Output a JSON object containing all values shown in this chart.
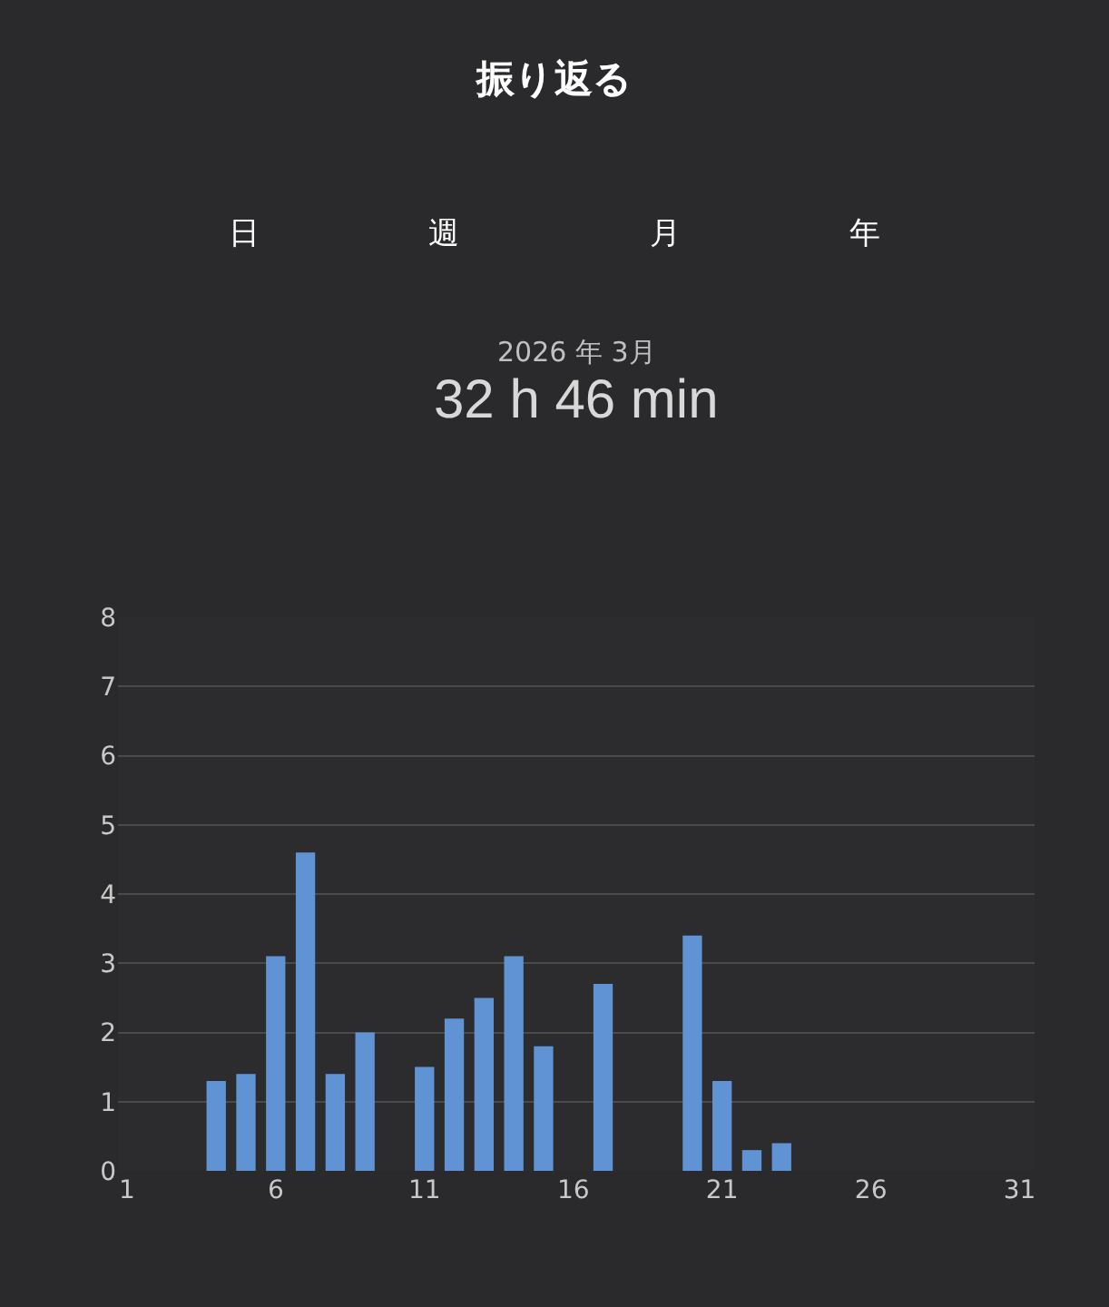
{
  "chart_data": {
    "type": "bar",
    "title": "振り返る",
    "subtitle": "2026 年 3月",
    "annotations": [
      "32 h 46 min",
      "日",
      "週",
      "月",
      "年"
    ],
    "x": [
      1,
      2,
      3,
      4,
      5,
      6,
      7,
      8,
      9,
      10,
      11,
      12,
      13,
      14,
      15,
      16,
      17,
      18,
      19,
      20,
      21,
      22,
      23,
      24,
      25,
      26,
      27,
      28,
      29,
      30,
      31
    ],
    "values": [
      0,
      0,
      0,
      1.3,
      1.4,
      3.1,
      4.6,
      1.4,
      2.0,
      0,
      1.5,
      2.2,
      2.5,
      3.1,
      1.8,
      0,
      2.7,
      0,
      0,
      3.4,
      1.3,
      0.3,
      0.4,
      0,
      0,
      0,
      0,
      0,
      0,
      0,
      0
    ],
    "color": "#5f93d3",
    "xlim": [
      0.7,
      31.5
    ],
    "xticks": [
      1,
      6,
      11,
      16,
      21,
      26,
      31
    ],
    "ylim": [
      0,
      8
    ],
    "yticks": [
      0,
      1,
      2,
      3,
      4,
      5,
      6,
      7,
      8
    ],
    "grid": "y",
    "legend": false
  }
}
